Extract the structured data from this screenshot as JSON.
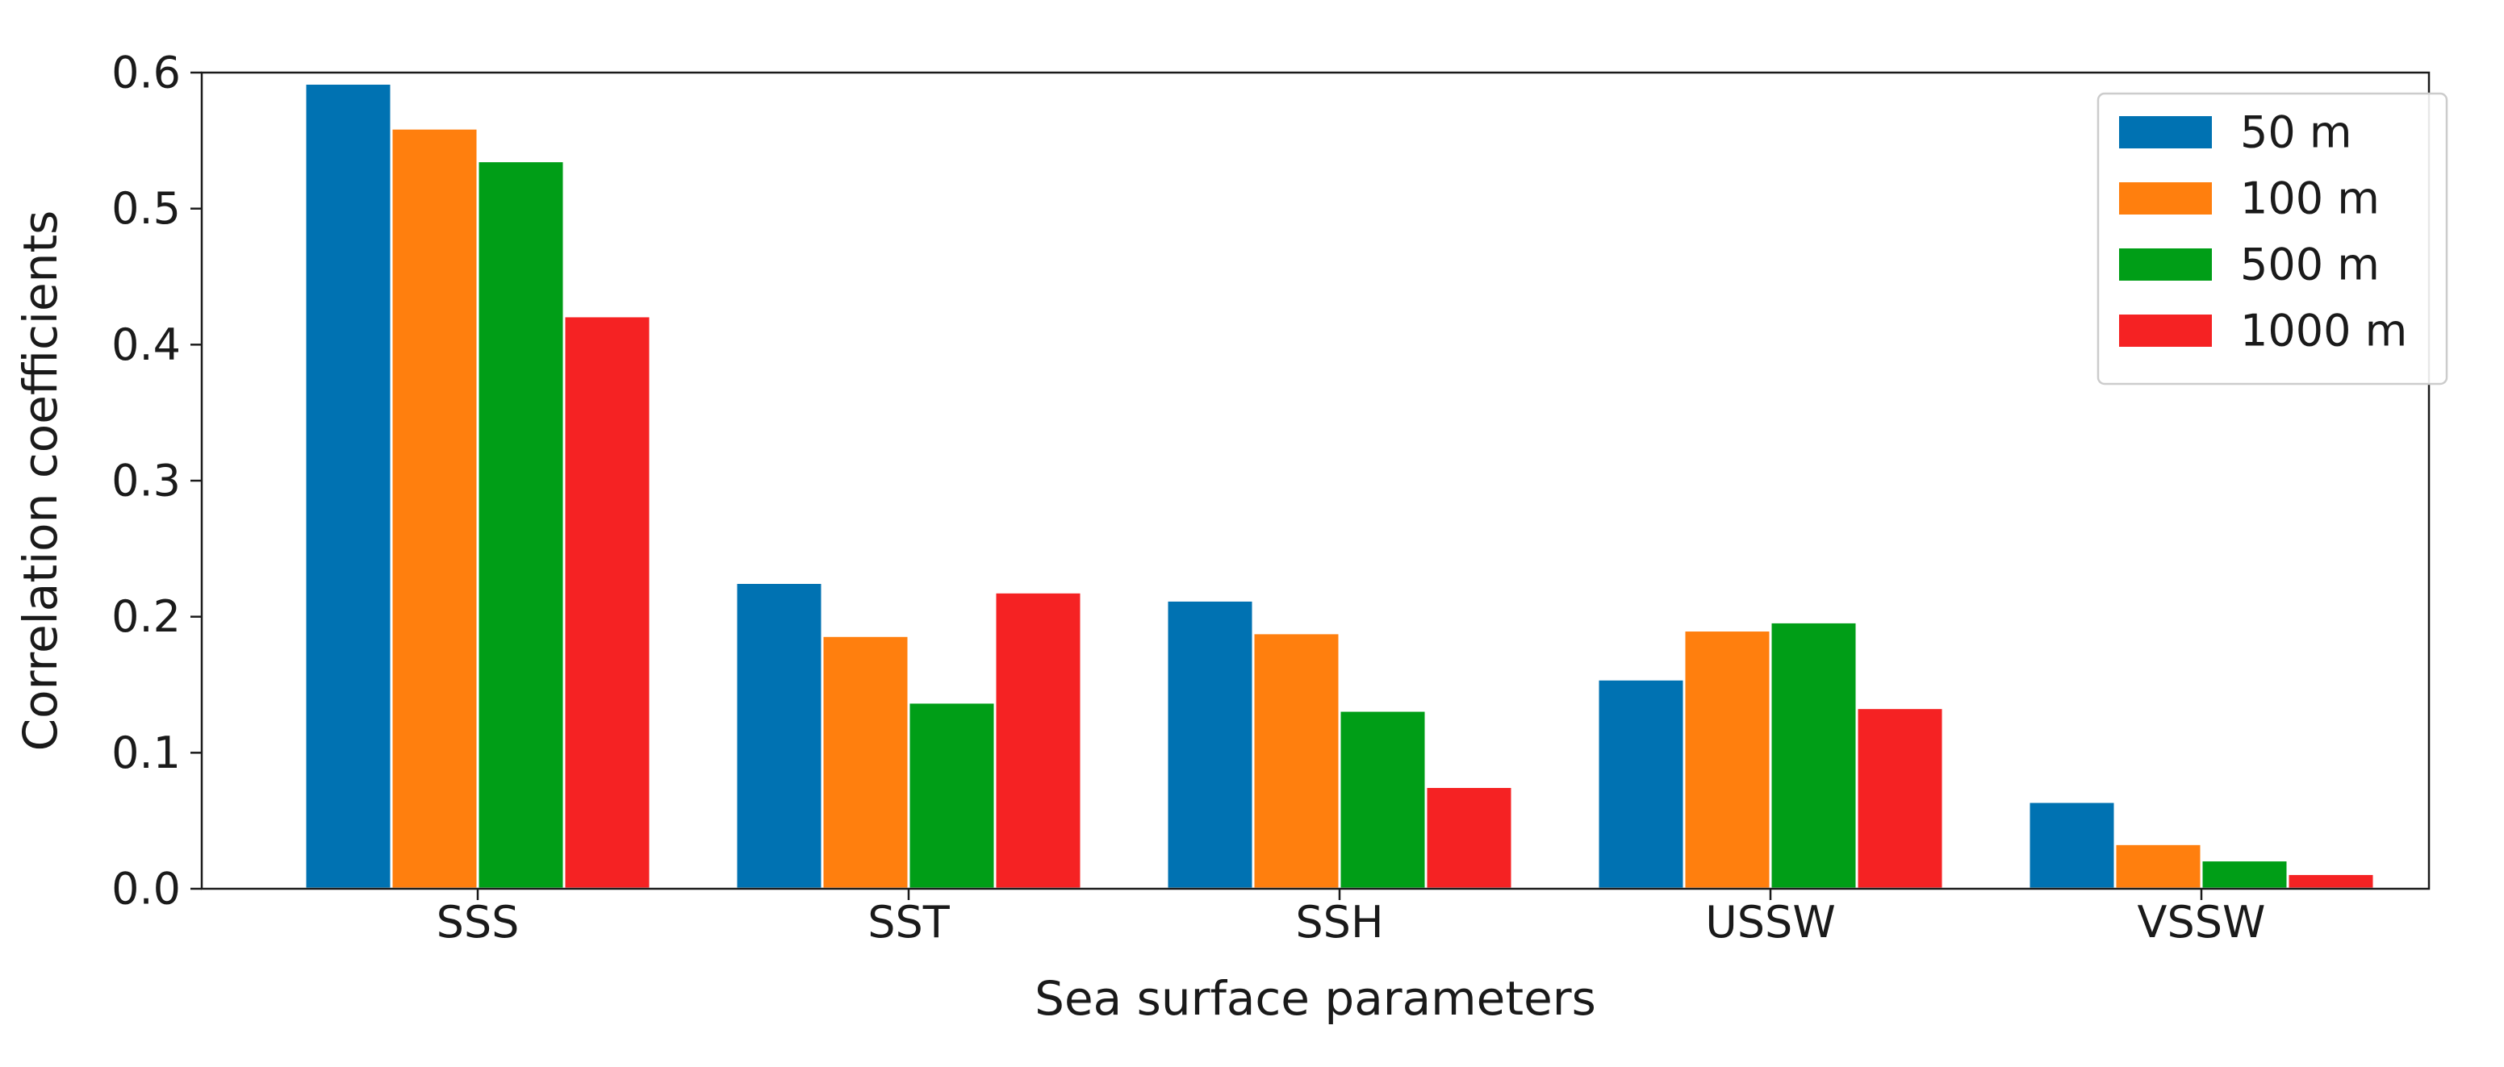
{
  "chart_data": {
    "type": "bar",
    "title": "",
    "xlabel": "Sea surface parameters",
    "ylabel": "Correlation coefficients",
    "categories": [
      "SSS",
      "SST",
      "SSH",
      "USSW",
      "VSSW"
    ],
    "series": [
      {
        "name": "50 m",
        "color": "#0072b2",
        "values": [
          0.592,
          0.225,
          0.212,
          0.154,
          0.064
        ]
      },
      {
        "name": "100 m",
        "color": "#ff7f0e",
        "values": [
          0.559,
          0.186,
          0.188,
          0.19,
          0.033
        ]
      },
      {
        "name": "500 m",
        "color": "#009e17",
        "values": [
          0.535,
          0.137,
          0.131,
          0.196,
          0.021
        ]
      },
      {
        "name": "1000 m",
        "color": "#f52223",
        "values": [
          0.421,
          0.218,
          0.075,
          0.133,
          0.011
        ]
      }
    ],
    "ylim": [
      0.0,
      0.6
    ],
    "yticks": [
      "0.0",
      "0.1",
      "0.2",
      "0.3",
      "0.4",
      "0.5",
      "0.6"
    ],
    "grid": false,
    "legend_position": "top-right"
  }
}
